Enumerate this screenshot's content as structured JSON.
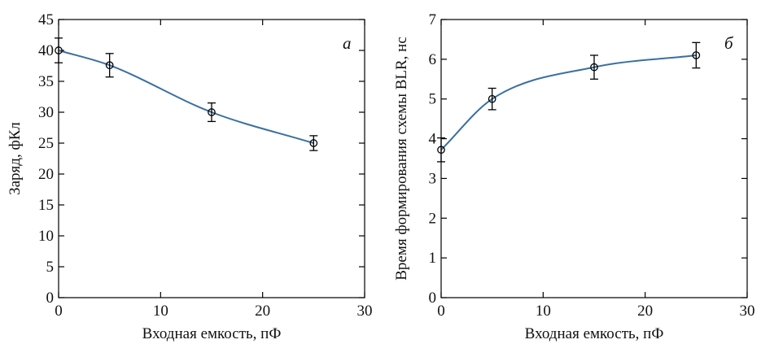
{
  "chart_data": [
    {
      "type": "line",
      "panel_label": "а",
      "xlabel": "Входная емкость, пФ",
      "ylabel": "Заряд, фКл",
      "xlim": [
        0,
        30
      ],
      "ylim": [
        0,
        45
      ],
      "xticks": [
        0,
        10,
        20,
        30
      ],
      "yticks": [
        0,
        5,
        10,
        15,
        20,
        25,
        30,
        35,
        40,
        45
      ],
      "grid": false,
      "line_color": "#3a70a0",
      "x": [
        0,
        5,
        15,
        25
      ],
      "y": [
        40.0,
        37.6,
        30.0,
        25.0
      ],
      "error": [
        2.0,
        1.9,
        1.5,
        1.2
      ]
    },
    {
      "type": "line",
      "panel_label": "б",
      "xlabel": "Входная емкость, пФ",
      "ylabel": "Время формирования схемы BLR, нс",
      "xlim": [
        0,
        30
      ],
      "ylim": [
        0,
        7
      ],
      "xticks": [
        0,
        10,
        20,
        30
      ],
      "yticks": [
        0,
        1,
        2,
        3,
        4,
        5,
        6,
        7
      ],
      "grid": false,
      "line_color": "#3a70a0",
      "x": [
        0,
        5,
        15,
        25
      ],
      "y": [
        3.72,
        5.0,
        5.8,
        6.1
      ],
      "error": [
        0.3,
        0.27,
        0.3,
        0.32
      ]
    }
  ]
}
